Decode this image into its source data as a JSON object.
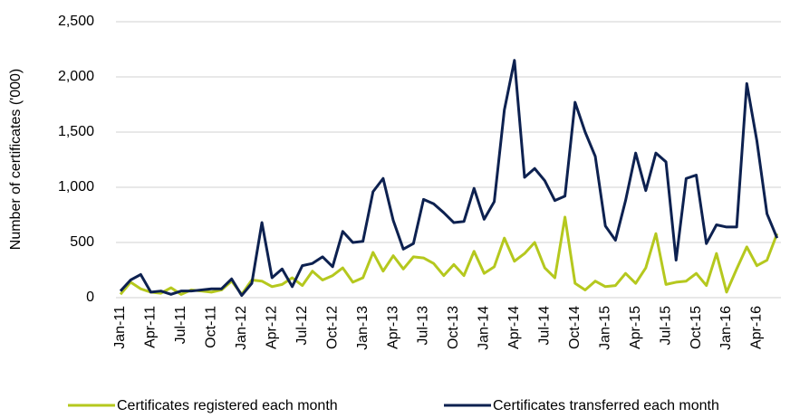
{
  "chart_data": {
    "type": "line",
    "y_label": "Number of certificates ('000)",
    "categories": [
      "Jan-11",
      null,
      null,
      "Apr-11",
      null,
      null,
      "Jul-11",
      null,
      null,
      "Oct-11",
      null,
      null,
      "Jan-12",
      null,
      null,
      "Apr-12",
      null,
      null,
      "Jul-12",
      null,
      null,
      "Oct-12",
      null,
      null,
      "Jan-13",
      null,
      null,
      "Apr-13",
      null,
      null,
      "Jul-13",
      null,
      null,
      "Oct-13",
      null,
      null,
      "Jan-14",
      null,
      null,
      "Apr-14",
      null,
      null,
      "Jul-14",
      null,
      null,
      "Oct-14",
      null,
      null,
      "Jan-15",
      null,
      null,
      "Apr-15",
      null,
      null,
      "Jul-15",
      null,
      null,
      "Oct-15",
      null,
      null,
      "Jan-16",
      null,
      null,
      "Apr-16",
      null,
      null
    ],
    "series": [
      {
        "name": "Certificates registered each month",
        "color": "#b5c81e",
        "values": [
          30,
          140,
          80,
          50,
          40,
          90,
          30,
          70,
          60,
          50,
          70,
          150,
          30,
          160,
          150,
          100,
          120,
          180,
          110,
          240,
          160,
          200,
          270,
          140,
          180,
          410,
          240,
          380,
          260,
          370,
          360,
          310,
          200,
          300,
          200,
          420,
          220,
          280,
          540,
          330,
          400,
          500,
          270,
          180,
          730,
          130,
          70,
          150,
          100,
          110,
          220,
          130,
          270,
          580,
          120,
          140,
          150,
          220,
          110,
          400,
          50,
          260,
          460,
          290,
          340,
          580
        ]
      },
      {
        "name": "Certificates transferred each month",
        "color": "#0d2150",
        "values": [
          60,
          160,
          210,
          50,
          60,
          30,
          60,
          60,
          70,
          80,
          80,
          170,
          20,
          130,
          680,
          180,
          260,
          100,
          290,
          310,
          370,
          280,
          600,
          500,
          510,
          960,
          1080,
          700,
          440,
          490,
          890,
          850,
          770,
          680,
          690,
          990,
          710,
          870,
          1700,
          2150,
          1090,
          1170,
          1060,
          880,
          920,
          1770,
          1500,
          1280,
          650,
          520,
          880,
          1310,
          970,
          1310,
          1230,
          340,
          1080,
          1110,
          490,
          660,
          640,
          640,
          1940,
          1420,
          760,
          540
        ]
      }
    ],
    "ylim": [
      0,
      2500
    ],
    "yticks": [
      0,
      {
        "value": 500,
        "label": "500"
      },
      {
        "value": 1000,
        "label": "1,000"
      },
      {
        "value": 1500,
        "label": "1,500"
      },
      {
        "value": 2000,
        "label": "2,000"
      },
      {
        "value": 2500,
        "label": "2,500"
      }
    ],
    "grid": true
  }
}
